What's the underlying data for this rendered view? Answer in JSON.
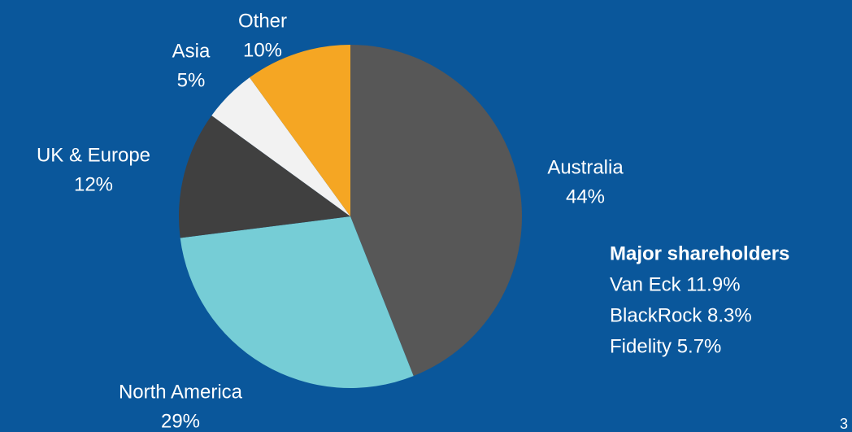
{
  "chart_data": {
    "type": "pie",
    "categories": [
      "Australia",
      "North America",
      "UK & Europe",
      "Asia",
      "Other"
    ],
    "values": [
      44,
      29,
      12,
      5,
      10
    ],
    "value_labels": [
      "44%",
      "29%",
      "12%",
      "5%",
      "10%"
    ],
    "colors": [
      "#575757",
      "#76cdd6",
      "#404040",
      "#f2f2f2",
      "#f5a623"
    ]
  },
  "shareholders": {
    "title": "Major shareholders",
    "items": [
      "Van Eck 11.9%",
      "BlackRock 8.3%",
      "Fidelity 5.7%"
    ]
  },
  "page_number": "3"
}
